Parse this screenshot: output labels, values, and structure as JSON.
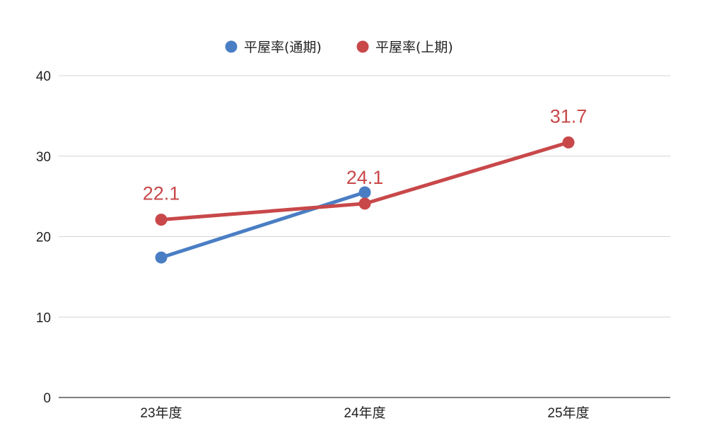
{
  "chart_data": {
    "type": "line",
    "categories": [
      "23年度",
      "24年度",
      "25年度"
    ],
    "ylim": [
      0,
      40
    ],
    "yticks": [
      "0",
      "10",
      "20",
      "30",
      "40"
    ],
    "grid": true,
    "legend_position": "top",
    "series": [
      {
        "name": "平屋率(通期)",
        "color": "#4a7ec4",
        "values": [
          17.4,
          25.5,
          null
        ],
        "data_labels": [
          null,
          null,
          null
        ]
      },
      {
        "name": "平屋率(上期)",
        "color": "#c8484a",
        "values": [
          22.1,
          24.1,
          31.7
        ],
        "data_labels": [
          "22.1",
          "24.1",
          "31.7"
        ]
      }
    ]
  }
}
